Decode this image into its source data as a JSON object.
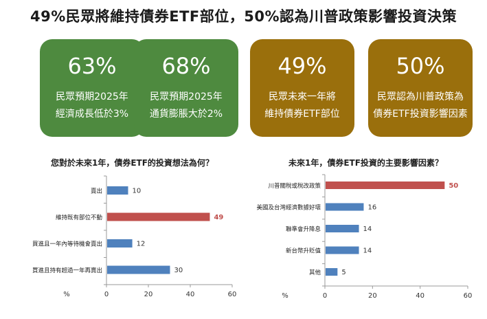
{
  "headline": "49%民眾將維持債券ETF部位，50%認為川普政策影響投資決策",
  "cards": [
    {
      "percent": "63%",
      "line1": "民眾預期2025年",
      "line2": "經濟成長低於3%",
      "color": "#4e8a3f"
    },
    {
      "percent": "68%",
      "line1": "民眾預期2025年",
      "line2": "通貨膨脹大於2%",
      "color": "#4e8a3f"
    },
    {
      "percent": "49%",
      "line1": "民眾未來一年將",
      "line2": "維持債券ETF部位",
      "color": "#9a6f0c"
    },
    {
      "percent": "50%",
      "line1": "民眾認為川普政策為",
      "line2": "債券ETF投資影響因素",
      "color": "#9a6f0c"
    }
  ],
  "chart_data": [
    {
      "type": "bar",
      "orientation": "horizontal",
      "title": "您對於未來1年，債券ETF的投資想法為何？",
      "categories": [
        "賣出",
        "維持既有部位不動",
        "買進且一年內等待機會賣出",
        "買進且持有超過一年再賣出"
      ],
      "values": [
        10,
        49,
        12,
        30
      ],
      "highlight_index": 1,
      "xlabel": "%",
      "xlim": [
        0,
        60
      ],
      "xticks": [
        0,
        20,
        40,
        60
      ],
      "colors": {
        "bar": "#4f81bd",
        "highlight": "#c0504d",
        "axis": "#999999",
        "value": "#333333"
      }
    },
    {
      "type": "bar",
      "orientation": "horizontal",
      "title": "未來1年，債券ETF投資的主要影響因素？",
      "categories": [
        "川普關稅或稅改政策",
        "美國及台灣經濟數據好壞",
        "聯準會升降息",
        "新台幣升貶值",
        "其他"
      ],
      "values": [
        50,
        16,
        14,
        14,
        5
      ],
      "highlight_index": 0,
      "xlabel": "%",
      "xlim": [
        0,
        60
      ],
      "xticks": [
        0,
        20,
        40,
        60
      ],
      "colors": {
        "bar": "#4f81bd",
        "highlight": "#c0504d",
        "axis": "#999999",
        "value": "#333333"
      }
    }
  ]
}
